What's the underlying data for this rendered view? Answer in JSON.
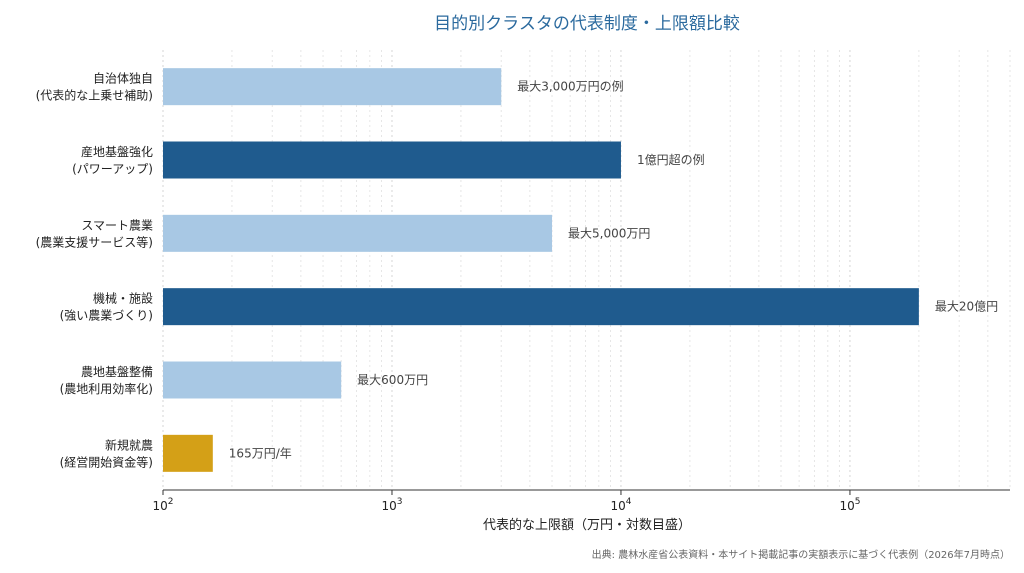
{
  "chart_data": {
    "type": "bar",
    "orientation": "horizontal",
    "title": "目的別クラスタの代表制度・上限額比較",
    "xlabel": "代表的な上限額（万円・対数目盛）",
    "x_scale": "log",
    "xlim": [
      100,
      500000
    ],
    "x_ticks": [
      100,
      1000,
      10000,
      100000
    ],
    "x_tick_labels": [
      {
        "base": "10",
        "exp": "2"
      },
      {
        "base": "10",
        "exp": "3"
      },
      {
        "base": "10",
        "exp": "4"
      },
      {
        "base": "10",
        "exp": "5"
      }
    ],
    "grid": "vertical minor and major lines",
    "categories": [
      {
        "line1": "自治体独自",
        "line2": "(代表的な上乗せ補助)",
        "value": 3000,
        "label": "最大3,000万円の例",
        "color": "#a8c8e4"
      },
      {
        "line1": "産地基盤強化",
        "line2": "(パワーアップ)",
        "value": 10000,
        "label": "1億円超の例",
        "color": "#1f5b8e"
      },
      {
        "line1": "スマート農業",
        "line2": "(農業支援サービス等)",
        "value": 5000,
        "label": "最大5,000万円",
        "color": "#a8c8e4"
      },
      {
        "line1": "機械・施設",
        "line2": "(強い農業づくり)",
        "value": 200000,
        "label": "最大20億円",
        "color": "#1f5b8e"
      },
      {
        "line1": "農地基盤整備",
        "line2": "(農地利用効率化)",
        "value": 600,
        "label": "最大600万円",
        "color": "#a8c8e4"
      },
      {
        "line1": "新規就農",
        "line2": "(経営開始資金等)",
        "value": 165,
        "label": "165万円/年",
        "color": "#d4a017"
      }
    ],
    "source": "出典: 農林水産省公表資料・本サイト掲載記事の実額表示に基づく代表例（2026年7月時点）"
  }
}
